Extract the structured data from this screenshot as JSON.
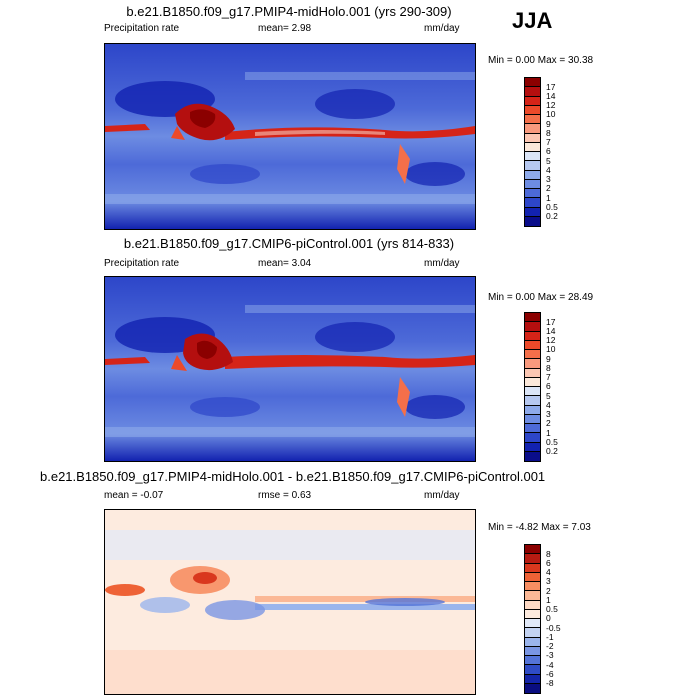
{
  "season": "JJA",
  "panels": [
    {
      "title": "b.e21.B1850.f09_g17.PMIP4-midHolo.001 (yrs 290-309)",
      "left_label": "Precipitation rate",
      "mean_text": "mean=   2.98",
      "units": "mm/day",
      "minmax": "Min =   0.00 Max =  30.38",
      "levels": [
        "17",
        "14",
        "12",
        "10",
        "9",
        "8",
        "7",
        "6",
        "5",
        "4",
        "3",
        "2",
        "1",
        "0.5",
        "0.2"
      ],
      "colors": [
        "#8b0000",
        "#b40f0f",
        "#d52418",
        "#ec4a2a",
        "#f46f4a",
        "#f99a7e",
        "#fcc7b3",
        "#fbe8da",
        "#dbe5f7",
        "#b6c8f0",
        "#8eaaea",
        "#6d8ce2",
        "#4d6ad8",
        "#2d46c9",
        "#1222b0",
        "#0a0d8a"
      ],
      "colors_count_note": ""
    },
    {
      "title": "b.e21.B1850.f09_g17.CMIP6-piControl.001 (yrs 814-833)",
      "left_label": "Precipitation rate",
      "mean_text": "mean=   3.04",
      "units": "mm/day",
      "minmax": "Min =   0.00 Max =  28.49",
      "levels": [
        "17",
        "14",
        "12",
        "10",
        "9",
        "8",
        "7",
        "6",
        "5",
        "4",
        "3",
        "2",
        "1",
        "0.5",
        "0.2"
      ],
      "colors": [
        "#8b0000",
        "#b40f0f",
        "#d52418",
        "#ec4a2a",
        "#f46f4a",
        "#f99a7e",
        "#fcc7b3",
        "#fbe8da",
        "#dbe5f7",
        "#b6c8f0",
        "#8eaaea",
        "#6d8ce2",
        "#4d6ad8",
        "#2d46c9",
        "#1222b0",
        "#0a0d8a"
      ],
      "colors_count_note": ""
    },
    {
      "title": "b.e21.B1850.f09_g17.PMIP4-midHolo.001 - b.e21.B1850.f09_g17.CMIP6-piControl.001",
      "left_label": "mean =  -0.07",
      "mean_text": "rmse =   0.63",
      "units": "mm/day",
      "minmax": "Min =  -4.82 Max =   7.03",
      "levels": [
        "8",
        "6",
        "4",
        "3",
        "2",
        "1",
        "0.5",
        "0",
        "-0.5",
        "-1",
        "-2",
        "-3",
        "-4",
        "-6",
        "-8"
      ],
      "colors": [
        "#8b0000",
        "#b71b12",
        "#d9381e",
        "#ee6236",
        "#f78e62",
        "#fbb896",
        "#fdd9c4",
        "#fdebdf",
        "#e1e9f8",
        "#c3d3f2",
        "#9bb5ec",
        "#7a96e3",
        "#5474d8",
        "#2f4cc6",
        "#1425a8",
        "#0a0d80"
      ],
      "colors_count_note": ""
    }
  ]
}
